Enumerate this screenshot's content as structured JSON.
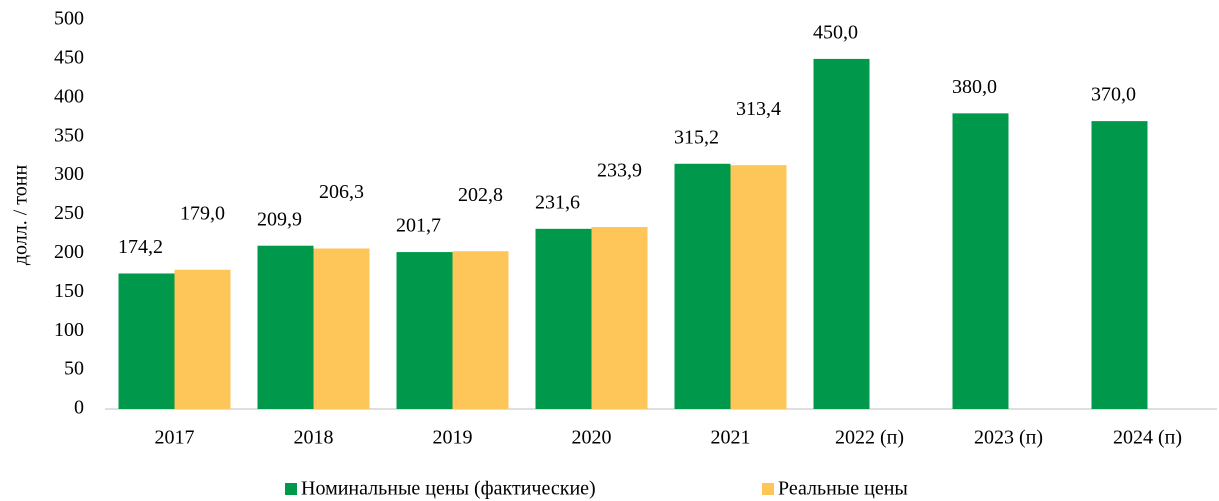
{
  "chart_data": {
    "type": "bar",
    "y_label": "долл. / тонн",
    "categories": [
      "2017",
      "2018",
      "2019",
      "2020",
      "2021",
      "2022 (п)",
      "2023 (п)",
      "2024 (п)"
    ],
    "series": [
      {
        "name": "Номинальные цены (фактические)",
        "color": "#00984a",
        "values": [
          174.2,
          209.9,
          201.7,
          231.6,
          315.2,
          450.0,
          380.0,
          370.0
        ],
        "value_labels": [
          "174,2",
          "209,9",
          "201,7",
          "231,6",
          "315,2",
          "450,0",
          "380,0",
          "370,0"
        ]
      },
      {
        "name": "Реальные цены",
        "color": "#fec558",
        "values": [
          179.0,
          206.3,
          202.8,
          233.9,
          313.4,
          null,
          null,
          null
        ],
        "value_labels": [
          "179,0",
          "206,3",
          "202,8",
          "233,9",
          "313,4",
          null,
          null,
          null
        ]
      }
    ],
    "ylim": [
      0,
      500
    ],
    "yticks": [
      0,
      50,
      100,
      150,
      200,
      250,
      300,
      350,
      400,
      450,
      500
    ],
    "grid": false,
    "legend": "bottom"
  }
}
